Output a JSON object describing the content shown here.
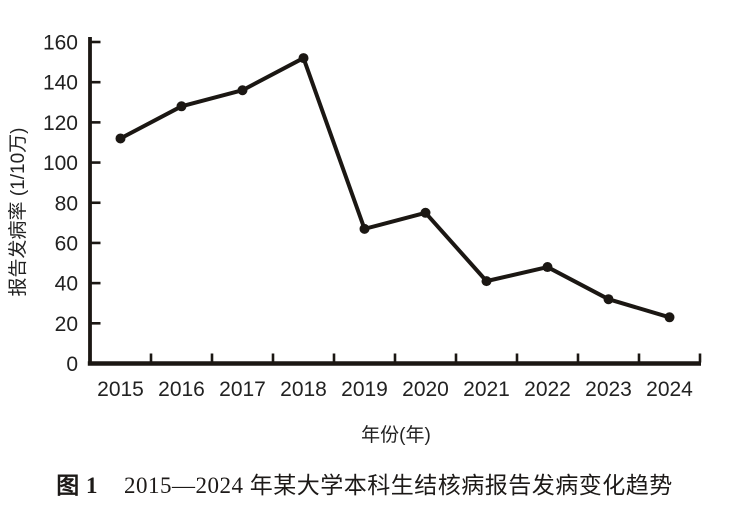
{
  "figure": {
    "caption": {
      "label": "图 1",
      "text": "2015—2024 年某大学本科生结核病报告发病变化趋势"
    }
  },
  "chart_data": {
    "type": "line",
    "title": "",
    "categories": [
      "2015",
      "2016",
      "2017",
      "2018",
      "2019",
      "2020",
      "2021",
      "2022",
      "2023",
      "2024"
    ],
    "series": [
      {
        "name": "报告发病率",
        "values": [
          112,
          128,
          136,
          152,
          67,
          75,
          41,
          48,
          32,
          23
        ]
      }
    ],
    "xlabel": "年份(年)",
    "ylabel": "报告发病率 (1/10万)",
    "ylim": [
      0,
      160
    ],
    "yticks": [
      0,
      20,
      40,
      60,
      80,
      100,
      120,
      140,
      160
    ],
    "grid": false,
    "legend": "none",
    "marker": "circle",
    "colors": {
      "ink": "#1b1713",
      "text": "#222222",
      "background": "#ffffff"
    }
  }
}
